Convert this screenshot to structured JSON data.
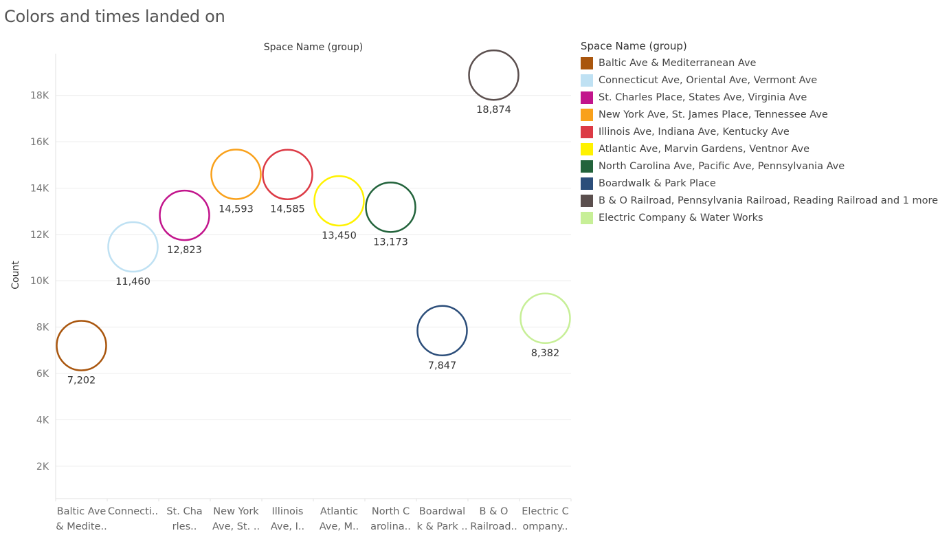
{
  "page_title": "Colors and times landed on",
  "chart_data": {
    "type": "scatter",
    "title": "Colors and times landed on",
    "column_header": "Space Name (group)",
    "ylabel": "Count",
    "ylim": [
      600,
      19800
    ],
    "yticks": [
      2000,
      4000,
      6000,
      8000,
      10000,
      12000,
      14000,
      16000,
      18000
    ],
    "ytick_labels": [
      "2K",
      "4K",
      "6K",
      "8K",
      "10K",
      "12K",
      "14K",
      "16K",
      "18K"
    ],
    "grid": true,
    "legend_position": "right",
    "categories": [
      {
        "axis_label": [
          "Baltic Ave",
          "& Medite.."
        ],
        "legend": "Baltic Ave & Mediterranean Ave",
        "value": 7202,
        "label": "7,202",
        "color": "#a9560e"
      },
      {
        "axis_label": [
          "Connecti..",
          ""
        ],
        "legend": "Connecticut Ave, Oriental Ave, Vermont Ave",
        "value": 11460,
        "label": "11,460",
        "color": "#bfe1f3"
      },
      {
        "axis_label": [
          "St. Cha",
          "rles.."
        ],
        "legend": "St. Charles Place, States Ave, Virginia Ave",
        "value": 12823,
        "label": "12,823",
        "color": "#c2158c"
      },
      {
        "axis_label": [
          "New York",
          "Ave, St. .."
        ],
        "legend": "New York Ave, St. James Place, Tennessee Ave",
        "value": 14593,
        "label": "14,593",
        "color": "#f9a11b"
      },
      {
        "axis_label": [
          "Illinois",
          "Ave, I.."
        ],
        "legend": "Illinois Ave, Indiana Ave, Kentucky Ave",
        "value": 14585,
        "label": "14,585",
        "color": "#dc3a45"
      },
      {
        "axis_label": [
          "Atlantic",
          "Ave, M.."
        ],
        "legend": "Atlantic Ave, Marvin Gardens, Ventnor Ave",
        "value": 13450,
        "label": "13,450",
        "color": "#fff200"
      },
      {
        "axis_label": [
          "North C",
          "arolina.."
        ],
        "legend": "North Carolina Ave, Pacific Ave, Pennsylvania Ave",
        "value": 13173,
        "label": "13,173",
        "color": "#22633b"
      },
      {
        "axis_label": [
          "Boardwal",
          "k & Park .."
        ],
        "legend": "Boardwalk & Park Place",
        "value": 7847,
        "label": "7,847",
        "color": "#2c4e7a"
      },
      {
        "axis_label": [
          "B & O",
          "Railroad.."
        ],
        "legend": "B & O Railroad, Pennsylvania Railroad, Reading Railroad and 1 more",
        "value": 18874,
        "label": "18,874",
        "color": "#5b4f4e"
      },
      {
        "axis_label": [
          "Electric C",
          "ompany.."
        ],
        "legend": "Electric Company & Water Works",
        "value": 8382,
        "label": "8,382",
        "color": "#c7ef97"
      }
    ]
  },
  "legend": {
    "title": "Space Name (group)"
  }
}
